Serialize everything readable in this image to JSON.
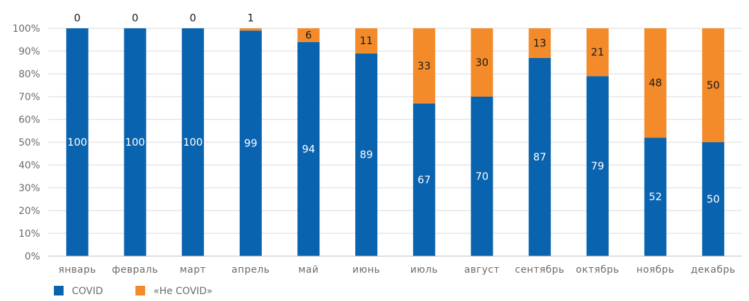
{
  "chart_data": {
    "type": "bar",
    "stacked": true,
    "categories": [
      "январь",
      "февраль",
      "март",
      "апрель",
      "май",
      "июнь",
      "июль",
      "август",
      "сентябрь",
      "октябрь",
      "ноябрь",
      "декабрь"
    ],
    "series": [
      {
        "name": "COVID",
        "color": "#0a63ae",
        "label_color": "#ffffff",
        "values": [
          100,
          100,
          100,
          99,
          94,
          89,
          67,
          70,
          87,
          79,
          52,
          50
        ]
      },
      {
        "name": "«Не COVID»",
        "color": "#f38b2a",
        "label_color": "#1a1a1a",
        "values": [
          0,
          0,
          0,
          1,
          6,
          11,
          33,
          30,
          13,
          21,
          48,
          50
        ]
      }
    ],
    "y_ticks": [
      "0%",
      "10%",
      "20%",
      "30%",
      "40%",
      "50%",
      "60%",
      "70%",
      "80%",
      "90%",
      "100%"
    ],
    "ylim": [
      0,
      100
    ],
    "grid": true,
    "gridline_color": "#d9d9d9",
    "legend_position": "bottom-left"
  }
}
